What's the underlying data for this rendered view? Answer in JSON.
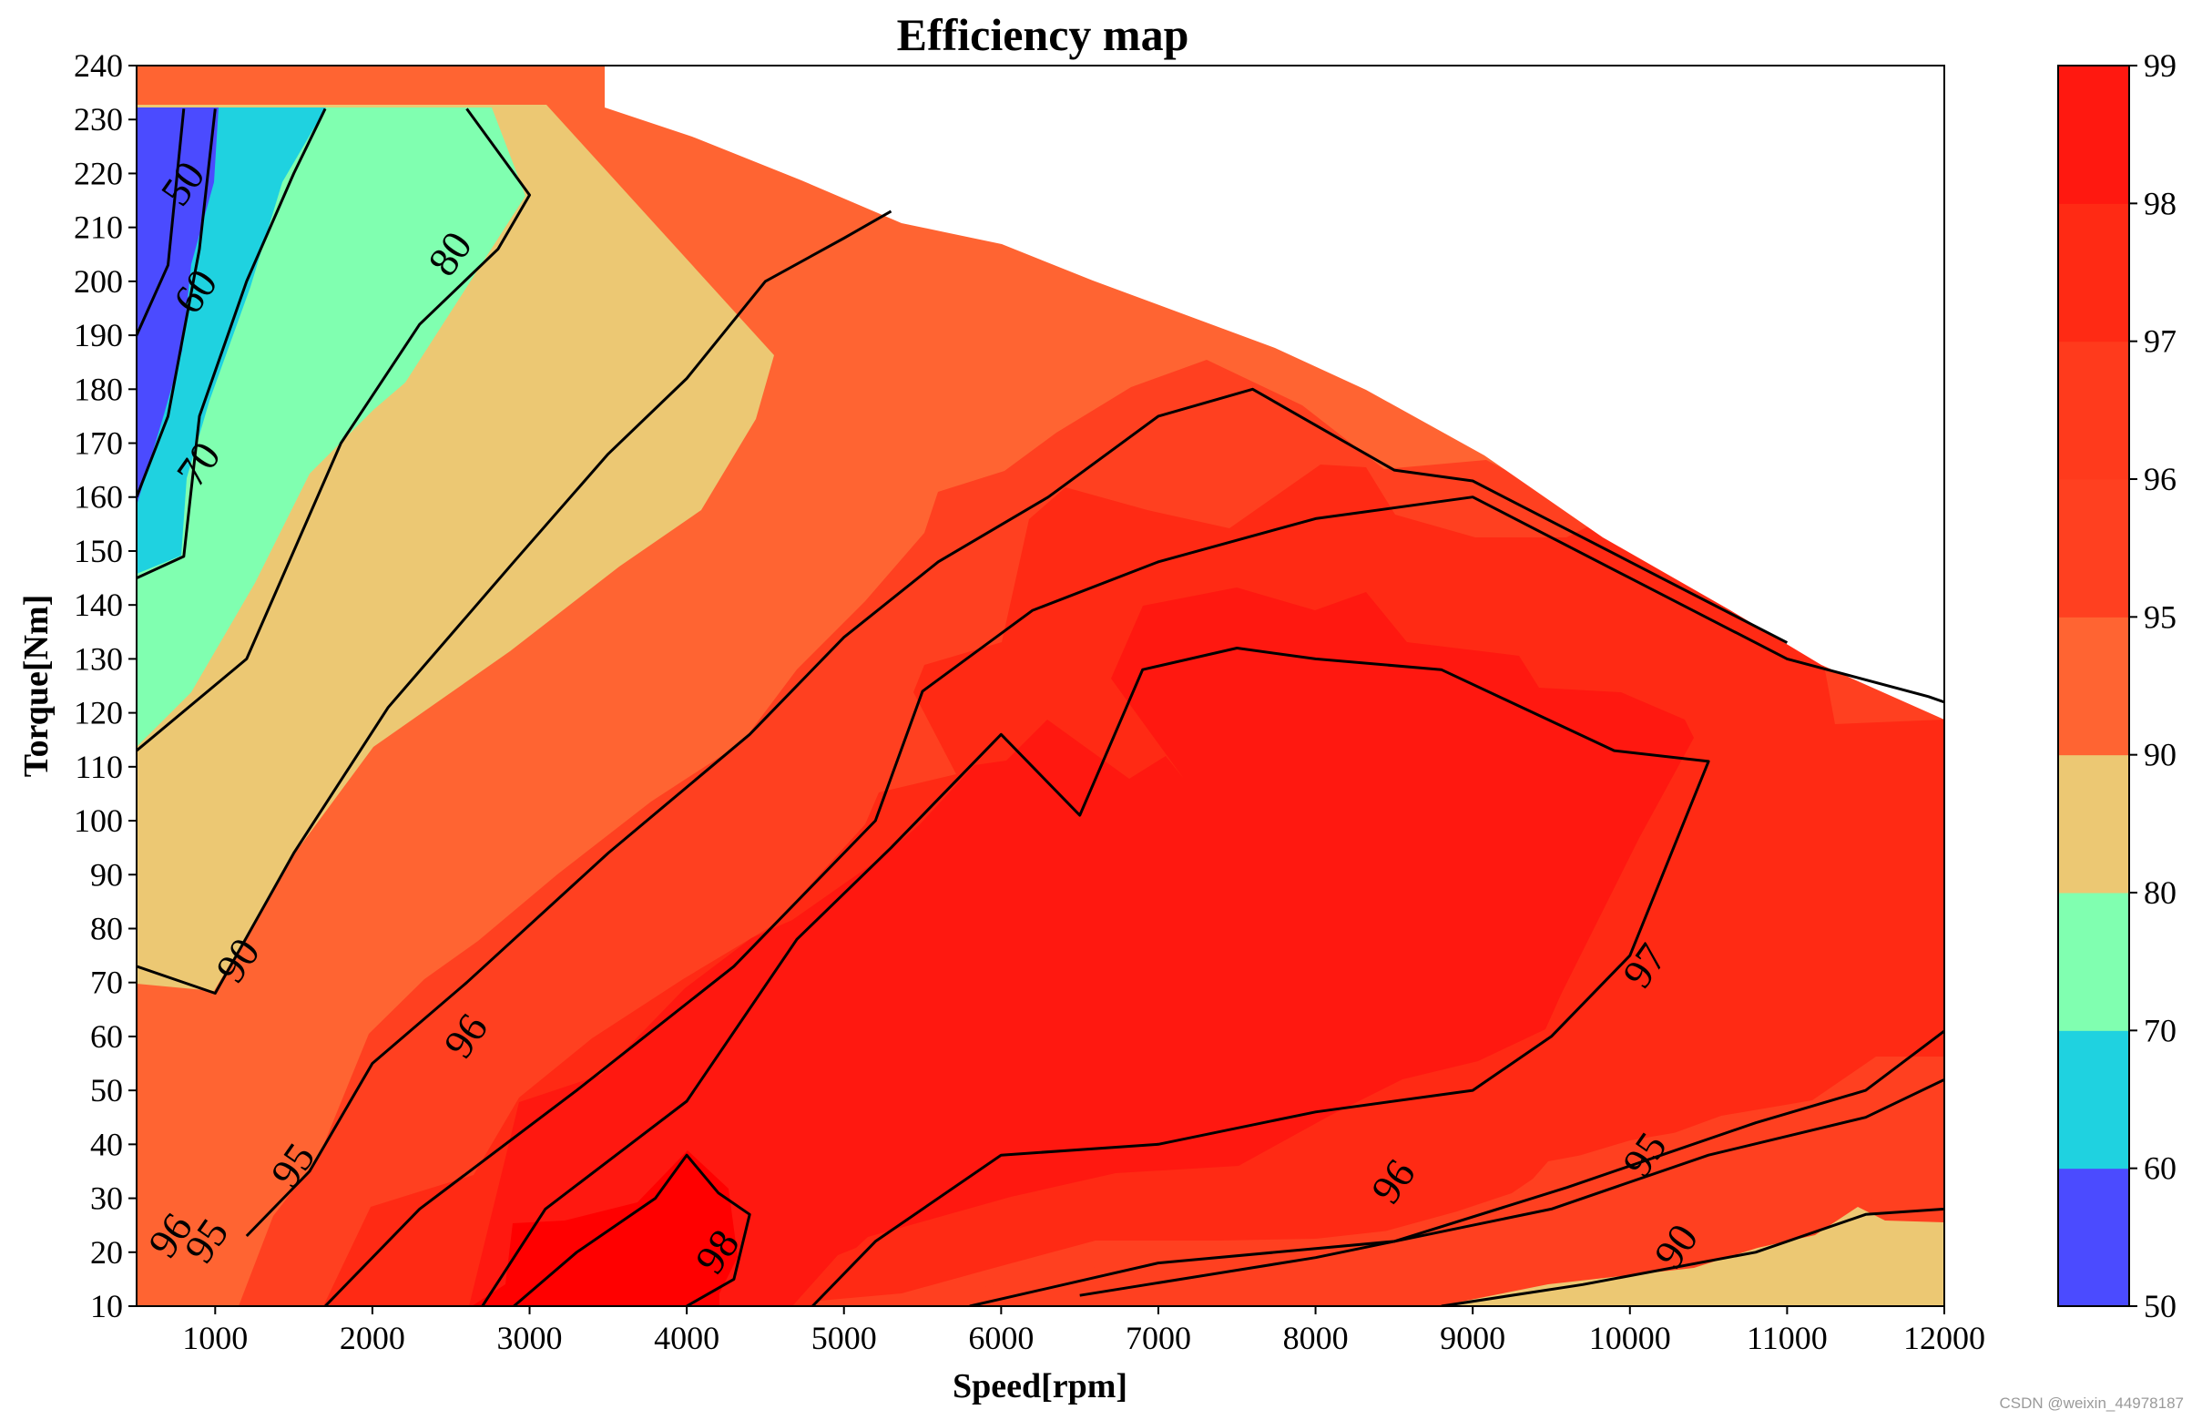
{
  "chart_data": {
    "type": "contourf",
    "title": "Efficiency map",
    "xlabel": "Speed[rpm]",
    "ylabel": "Torque[Nm]",
    "xlim": [
      500,
      12000
    ],
    "ylim": [
      10,
      240
    ],
    "xticks": [
      1000,
      2000,
      3000,
      4000,
      5000,
      6000,
      7000,
      8000,
      9000,
      10000,
      11000,
      12000
    ],
    "yticks": [
      10,
      20,
      30,
      40,
      50,
      60,
      70,
      80,
      90,
      100,
      110,
      120,
      130,
      140,
      150,
      160,
      170,
      180,
      190,
      200,
      210,
      220,
      230,
      240
    ],
    "levels": [
      50,
      60,
      70,
      80,
      90,
      95,
      96,
      97,
      98,
      99
    ],
    "colorbar": {
      "ticks": [
        50,
        60,
        70,
        80,
        90,
        95,
        96,
        97,
        98,
        99
      ],
      "colors": [
        "#4b4bff",
        "#1fd2e0",
        "#80ffb0",
        "#ecc873",
        "#ff6432",
        "#ff4020",
        "#ff3a1c",
        "#ff2a14",
        "#ff1810",
        "#ff0000"
      ]
    },
    "max_torque_envelope": [
      [
        700,
        232
      ],
      [
        3500,
        232
      ],
      [
        5000,
        212
      ],
      [
        6000,
        203
      ],
      [
        7000,
        192
      ],
      [
        8000,
        180
      ],
      [
        9000,
        165
      ],
      [
        10000,
        150
      ],
      [
        11000,
        133
      ],
      [
        12000,
        121
      ]
    ],
    "contour_lines": [
      {
        "level": 50,
        "points": [
          [
            500,
            190
          ],
          [
            700,
            203
          ],
          [
            800,
            232
          ]
        ]
      },
      {
        "level": 60,
        "points": [
          [
            500,
            160
          ],
          [
            700,
            175
          ],
          [
            900,
            206
          ],
          [
            1000,
            232
          ]
        ]
      },
      {
        "level": 70,
        "points": [
          [
            500,
            145
          ],
          [
            800,
            149
          ],
          [
            900,
            175
          ],
          [
            1200,
            200
          ],
          [
            1500,
            220
          ],
          [
            1700,
            232
          ]
        ]
      },
      {
        "level": 80,
        "points": [
          [
            500,
            113
          ],
          [
            1200,
            130
          ],
          [
            1800,
            170
          ],
          [
            2300,
            192
          ],
          [
            2800,
            206
          ],
          [
            3000,
            216
          ],
          [
            2600,
            232
          ]
        ]
      },
      {
        "level": 90,
        "points": [
          [
            500,
            73
          ],
          [
            1000,
            68
          ],
          [
            1500,
            94
          ],
          [
            2100,
            121
          ],
          [
            2900,
            148
          ],
          [
            3500,
            168
          ],
          [
            4000,
            182
          ],
          [
            4500,
            200
          ],
          [
            5000,
            208
          ],
          [
            5300,
            213
          ]
        ]
      },
      {
        "level": 95,
        "points": [
          [
            1200,
            23
          ],
          [
            1600,
            35
          ],
          [
            2000,
            55
          ],
          [
            2600,
            70
          ],
          [
            3500,
            94
          ],
          [
            4400,
            116
          ],
          [
            5000,
            134
          ],
          [
            5600,
            148
          ],
          [
            6300,
            160
          ],
          [
            7000,
            175
          ],
          [
            7600,
            180
          ],
          [
            8500,
            165
          ],
          [
            9000,
            163
          ],
          [
            10000,
            148
          ],
          [
            11000,
            133
          ]
        ]
      },
      {
        "level": 96,
        "points": [
          [
            1700,
            10
          ],
          [
            2300,
            28
          ],
          [
            3300,
            50
          ],
          [
            4300,
            73
          ],
          [
            5200,
            100
          ],
          [
            5500,
            124
          ],
          [
            6200,
            139
          ],
          [
            7000,
            148
          ],
          [
            8000,
            156
          ],
          [
            9000,
            160
          ],
          [
            10000,
            145
          ],
          [
            11000,
            130
          ],
          [
            11900,
            123
          ],
          [
            12000,
            122
          ]
        ]
      },
      {
        "level": 97,
        "points": [
          [
            2700,
            10
          ],
          [
            3100,
            28
          ],
          [
            4000,
            48
          ],
          [
            4700,
            78
          ],
          [
            5300,
            95
          ],
          [
            6000,
            116
          ],
          [
            6500,
            101
          ],
          [
            6900,
            128
          ],
          [
            7500,
            132
          ],
          [
            8000,
            130
          ],
          [
            8800,
            128
          ],
          [
            9900,
            113
          ],
          [
            10500,
            111
          ],
          [
            10000,
            75
          ],
          [
            9500,
            60
          ],
          [
            9000,
            50
          ],
          [
            8000,
            46
          ],
          [
            7000,
            40
          ],
          [
            6000,
            38
          ],
          [
            5200,
            22
          ],
          [
            4800,
            10
          ]
        ]
      },
      {
        "level": 98,
        "points": [
          [
            2900,
            10
          ],
          [
            3300,
            20
          ],
          [
            3800,
            30
          ],
          [
            4000,
            38
          ],
          [
            4200,
            31
          ],
          [
            4400,
            27
          ],
          [
            4300,
            15
          ],
          [
            4000,
            10
          ]
        ]
      },
      {
        "level": 96,
        "points": [
          [
            5800,
            10
          ],
          [
            7000,
            18
          ],
          [
            8500,
            22
          ],
          [
            9600,
            32
          ],
          [
            10800,
            44
          ],
          [
            11500,
            50
          ],
          [
            12000,
            61
          ]
        ]
      },
      {
        "level": 95,
        "points": [
          [
            6500,
            12
          ],
          [
            8000,
            19
          ],
          [
            9500,
            28
          ],
          [
            10500,
            38
          ],
          [
            11500,
            45
          ],
          [
            12000,
            52
          ]
        ]
      },
      {
        "level": 90,
        "points": [
          [
            8800,
            10
          ],
          [
            9700,
            14
          ],
          [
            10800,
            20
          ],
          [
            11500,
            27
          ],
          [
            12000,
            28
          ]
        ]
      }
    ],
    "contour_labels": [
      {
        "text": "50",
        "x": 800,
        "y": 218
      },
      {
        "text": "60",
        "x": 880,
        "y": 198
      },
      {
        "text": "70",
        "x": 900,
        "y": 166
      },
      {
        "text": "80",
        "x": 2500,
        "y": 205
      },
      {
        "text": "90",
        "x": 1150,
        "y": 74
      },
      {
        "text": "95",
        "x": 1500,
        "y": 36
      },
      {
        "text": "96",
        "x": 2600,
        "y": 60
      },
      {
        "text": "97",
        "x": 10100,
        "y": 73
      },
      {
        "text": "98",
        "x": 4200,
        "y": 20
      },
      {
        "text": "96",
        "x": 8500,
        "y": 33
      },
      {
        "text": "95",
        "x": 10100,
        "y": 38
      },
      {
        "text": "90",
        "x": 10300,
        "y": 21
      },
      {
        "text": "96",
        "x": 720,
        "y": 23
      },
      {
        "text": "95",
        "x": 950,
        "y": 22
      }
    ]
  },
  "watermark": "CSDN @weixin_44978187"
}
